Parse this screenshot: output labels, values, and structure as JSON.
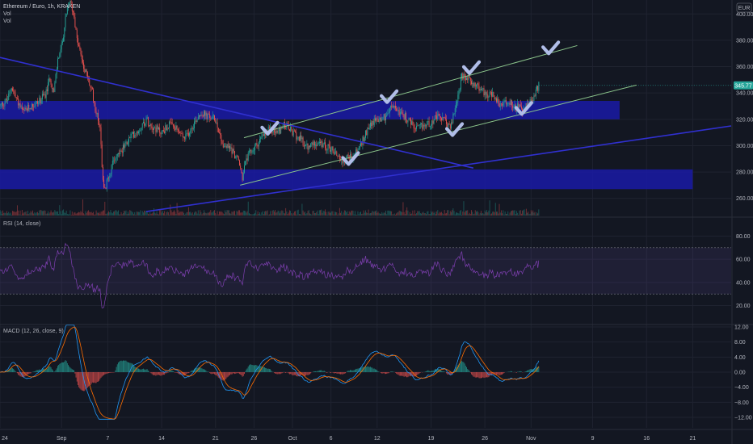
{
  "header": {
    "title": "Ethereum / Euro, 1h, KRAKEN",
    "vol_lines": [
      "Vol",
      "Vol"
    ],
    "currency": "EUR"
  },
  "colors": {
    "background": "#131722",
    "up": "#26a69a",
    "down": "#ef5350",
    "zone": "#1a1aa6",
    "trend_line": "#3030d0",
    "channel": "#8bc48b",
    "check": "#b0bde8",
    "rsi": "#7e3fb0",
    "macd": "#2196f3",
    "signal": "#ff6d00",
    "price_badge": "#26a69a"
  },
  "chart_data": [
    {
      "type": "line",
      "pane": "price",
      "title": "Ethereum / Euro, 1h, KRAKEN",
      "y_ticks": [
        260,
        280,
        300,
        320,
        340,
        360,
        380,
        400
      ],
      "y_tick_labels": [
        "260.00",
        "280.00",
        "300.00",
        "320.00",
        "340.00",
        "360.00",
        "380.00",
        "400.00"
      ],
      "ylim": [
        250,
        415
      ],
      "x_ticks": [
        "24",
        "Sep",
        "7",
        "14",
        "21",
        "26",
        "Oct",
        "6",
        "12",
        "19",
        "26",
        "Nov",
        "9",
        "16",
        "21"
      ],
      "x_tick_days": [
        0,
        8,
        14,
        21,
        28,
        33,
        38,
        43,
        49,
        56,
        63,
        69,
        77,
        84,
        90
      ],
      "xlim_days": [
        0,
        95
      ],
      "last_day": 70,
      "last_price": 345.77,
      "last_price_label": "345.77",
      "price_path": [
        [
          0,
          330
        ],
        [
          1,
          335
        ],
        [
          1.5,
          345
        ],
        [
          2,
          337
        ],
        [
          3,
          325
        ],
        [
          4,
          330
        ],
        [
          5,
          333
        ],
        [
          6,
          340
        ],
        [
          6.5,
          352
        ],
        [
          7,
          340
        ],
        [
          7.5,
          365
        ],
        [
          8,
          375
        ],
        [
          8.5,
          395
        ],
        [
          9,
          410
        ],
        [
          9.6,
          400
        ],
        [
          10,
          380
        ],
        [
          11,
          358
        ],
        [
          12,
          340
        ],
        [
          12.5,
          325
        ],
        [
          13,
          315
        ],
        [
          13.3,
          280
        ],
        [
          13.6,
          265
        ],
        [
          14,
          275
        ],
        [
          15,
          292
        ],
        [
          16,
          298
        ],
        [
          17,
          307
        ],
        [
          18,
          312
        ],
        [
          19,
          320
        ],
        [
          20,
          314
        ],
        [
          21,
          310
        ],
        [
          22,
          316
        ],
        [
          23,
          312
        ],
        [
          24,
          305
        ],
        [
          25,
          315
        ],
        [
          26,
          325
        ],
        [
          27,
          322
        ],
        [
          28,
          320
        ],
        [
          29,
          300
        ],
        [
          30,
          298
        ],
        [
          31,
          288
        ],
        [
          31.5,
          276
        ],
        [
          32,
          290
        ],
        [
          33,
          298
        ],
        [
          34,
          306
        ],
        [
          35,
          312
        ],
        [
          36,
          310
        ],
        [
          37,
          316
        ],
        [
          38,
          310
        ],
        [
          39,
          305
        ],
        [
          40,
          298
        ],
        [
          41,
          303
        ],
        [
          42,
          300
        ],
        [
          43,
          298
        ],
        [
          44,
          292
        ],
        [
          44.5,
          288
        ],
        [
          45,
          291
        ],
        [
          46,
          293
        ],
        [
          47,
          302
        ],
        [
          48,
          316
        ],
        [
          49,
          320
        ],
        [
          50,
          322
        ],
        [
          51,
          330
        ],
        [
          52,
          325
        ],
        [
          53,
          320
        ],
        [
          54,
          312
        ],
        [
          55,
          315
        ],
        [
          56,
          318
        ],
        [
          57,
          322
        ],
        [
          58,
          318
        ],
        [
          58.5,
          313
        ],
        [
          59,
          325
        ],
        [
          60,
          352
        ],
        [
          61,
          350
        ],
        [
          62,
          345
        ],
        [
          63,
          340
        ],
        [
          64,
          338
        ],
        [
          65,
          330
        ],
        [
          66,
          333
        ],
        [
          67,
          330
        ],
        [
          68,
          327
        ],
        [
          69,
          333
        ],
        [
          70,
          345.77
        ]
      ]
    },
    {
      "type": "line",
      "pane": "rsi",
      "title": "RSI (14, close)",
      "y_ticks": [
        20,
        40,
        60,
        80
      ],
      "y_tick_labels": [
        "20.00",
        "40.00",
        "60.00",
        "80.00"
      ],
      "ylim": [
        12,
        88
      ],
      "band": [
        30,
        70
      ]
    },
    {
      "type": "line",
      "pane": "macd",
      "title": "MACD (12, 26, close, 9)",
      "y_ticks": [
        -12,
        -8,
        -4,
        0,
        4,
        8,
        12
      ],
      "y_tick_labels": [
        "−12.00",
        "−8.00",
        "−4.00",
        "0.00",
        "4.00",
        "8.00",
        "12.00"
      ],
      "ylim": [
        -13.5,
        13.5
      ]
    }
  ],
  "drawings": {
    "zones": [
      {
        "name": "upper-zone",
        "from_day": 0,
        "to_day": 80.5,
        "y_low": 320,
        "y_high": 334
      },
      {
        "name": "lower-zone",
        "from_day": 0,
        "to_day": 90,
        "y_low": 267,
        "y_high": 282
      }
    ],
    "lines": [
      {
        "name": "descending-trendline",
        "from": [
          0,
          367
        ],
        "to": [
          61.5,
          283
        ],
        "style": "trend"
      },
      {
        "name": "ascending-trendline",
        "from": [
          19,
          250
        ],
        "to": [
          95,
          315
        ],
        "style": "trend"
      },
      {
        "name": "channel-upper",
        "from": [
          31.7,
          306
        ],
        "to": [
          75,
          376
        ],
        "style": "channel"
      },
      {
        "name": "channel-lower",
        "from": [
          31.2,
          270
        ],
        "to": [
          82.7,
          346
        ],
        "style": "channel"
      }
    ],
    "checkmarks": [
      {
        "day": 35,
        "price": 312
      },
      {
        "day": 45.5,
        "price": 289
      },
      {
        "day": 50.5,
        "price": 336
      },
      {
        "day": 59,
        "price": 311
      },
      {
        "day": 61.2,
        "price": 358
      },
      {
        "day": 68,
        "price": 327
      },
      {
        "day": 71.5,
        "price": 373
      }
    ]
  }
}
